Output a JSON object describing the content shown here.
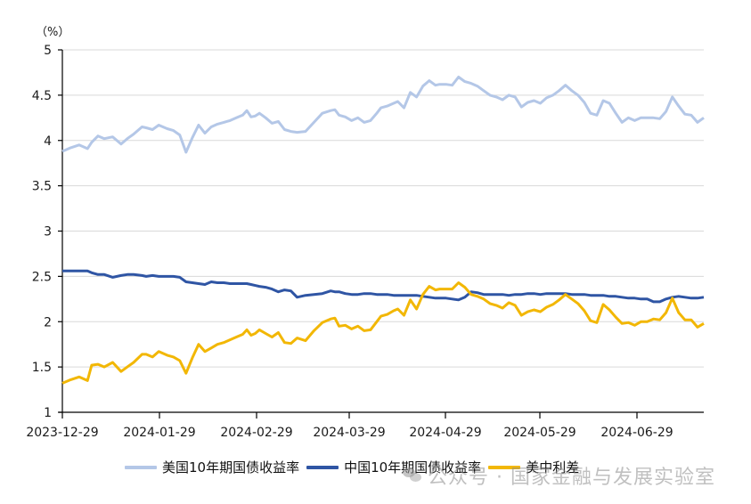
{
  "chart_data": {
    "type": "line",
    "title": "",
    "ylabel": "（%）",
    "xlabel": "",
    "ylim": [
      1,
      5
    ],
    "yticks": [
      "1",
      "1.5",
      "2",
      "2.5",
      "3",
      "3.5",
      "4",
      "4.5",
      "5"
    ],
    "xticks": [
      "2023-12-29",
      "2024-01-29",
      "2024-02-29",
      "2024-03-29",
      "2024-04-29",
      "2024-05-29",
      "2024-06-29"
    ],
    "grid": "horizontal",
    "legend_position": "bottom",
    "x": [
      0,
      4,
      8,
      12,
      14,
      17,
      20,
      24,
      28,
      31,
      34,
      38,
      40,
      43,
      46,
      50,
      53,
      56,
      59,
      62,
      65,
      68,
      71,
      74,
      77,
      80,
      83,
      86,
      88,
      90,
      92,
      94,
      97,
      100,
      103,
      106,
      109,
      112,
      116,
      120,
      124,
      128,
      130,
      132,
      135,
      138,
      141,
      144,
      147,
      150,
      152,
      155,
      158,
      160,
      163,
      166,
      169,
      172,
      175,
      178,
      180,
      183,
      186,
      189,
      192,
      195,
      198,
      201,
      204,
      207,
      210,
      213,
      216,
      219,
      222,
      225,
      228,
      231,
      234,
      237,
      240,
      243,
      246,
      249,
      252,
      255,
      258,
      261,
      264,
      267,
      270,
      273,
      276,
      279,
      282,
      285,
      288,
      291,
      294,
      297,
      300,
      303,
      306
    ],
    "series": [
      {
        "name": "美国10年期国债收益率",
        "color": "#b4c7e7",
        "values": [
          3.88,
          3.92,
          3.95,
          3.91,
          3.98,
          4.05,
          4.02,
          4.04,
          3.96,
          4.02,
          4.07,
          4.15,
          4.14,
          4.12,
          4.17,
          4.13,
          4.11,
          4.06,
          3.87,
          4.03,
          4.17,
          4.08,
          4.15,
          4.18,
          4.2,
          4.22,
          4.25,
          4.28,
          4.33,
          4.26,
          4.27,
          4.3,
          4.25,
          4.19,
          4.21,
          4.12,
          4.1,
          4.09,
          4.1,
          4.2,
          4.3,
          4.33,
          4.34,
          4.28,
          4.26,
          4.22,
          4.25,
          4.2,
          4.22,
          4.3,
          4.36,
          4.38,
          4.41,
          4.43,
          4.36,
          4.53,
          4.48,
          4.6,
          4.66,
          4.61,
          4.62,
          4.62,
          4.61,
          4.7,
          4.65,
          4.63,
          4.6,
          4.55,
          4.5,
          4.48,
          4.45,
          4.5,
          4.48,
          4.37,
          4.42,
          4.44,
          4.41,
          4.47,
          4.5,
          4.55,
          4.61,
          4.55,
          4.5,
          4.42,
          4.3,
          4.28,
          4.44,
          4.41,
          4.3,
          4.2,
          4.25,
          4.22,
          4.25,
          4.25,
          4.25,
          4.24,
          4.32,
          4.48,
          4.38,
          4.29,
          4.28,
          4.2,
          4.25
        ]
      },
      {
        "name": "中国10年期国债收益率",
        "color": "#2f55a4",
        "values": [
          2.56,
          2.56,
          2.56,
          2.56,
          2.54,
          2.52,
          2.52,
          2.49,
          2.51,
          2.52,
          2.52,
          2.51,
          2.5,
          2.51,
          2.5,
          2.5,
          2.5,
          2.49,
          2.44,
          2.43,
          2.42,
          2.41,
          2.44,
          2.43,
          2.43,
          2.42,
          2.42,
          2.42,
          2.42,
          2.41,
          2.4,
          2.39,
          2.38,
          2.36,
          2.33,
          2.35,
          2.34,
          2.27,
          2.29,
          2.3,
          2.31,
          2.34,
          2.33,
          2.33,
          2.31,
          2.3,
          2.3,
          2.31,
          2.31,
          2.3,
          2.3,
          2.3,
          2.29,
          2.29,
          2.29,
          2.29,
          2.29,
          2.28,
          2.27,
          2.26,
          2.26,
          2.26,
          2.25,
          2.24,
          2.27,
          2.33,
          2.32,
          2.3,
          2.3,
          2.3,
          2.3,
          2.29,
          2.3,
          2.3,
          2.31,
          2.31,
          2.3,
          2.31,
          2.31,
          2.31,
          2.31,
          2.3,
          2.3,
          2.3,
          2.29,
          2.29,
          2.29,
          2.28,
          2.28,
          2.27,
          2.26,
          2.26,
          2.25,
          2.25,
          2.22,
          2.22,
          2.25,
          2.27,
          2.28,
          2.27,
          2.26,
          2.26,
          2.27
        ]
      },
      {
        "name": "美中利差",
        "color": "#f2b705",
        "values": [
          1.32,
          1.36,
          1.39,
          1.35,
          1.52,
          1.53,
          1.5,
          1.55,
          1.45,
          1.5,
          1.55,
          1.64,
          1.64,
          1.61,
          1.67,
          1.63,
          1.61,
          1.57,
          1.43,
          1.6,
          1.75,
          1.67,
          1.71,
          1.75,
          1.77,
          1.8,
          1.83,
          1.86,
          1.91,
          1.85,
          1.87,
          1.91,
          1.87,
          1.83,
          1.88,
          1.77,
          1.76,
          1.82,
          1.79,
          1.9,
          1.99,
          2.03,
          2.04,
          1.95,
          1.96,
          1.92,
          1.95,
          1.9,
          1.91,
          2.0,
          2.06,
          2.08,
          2.12,
          2.14,
          2.07,
          2.24,
          2.14,
          2.3,
          2.39,
          2.35,
          2.36,
          2.36,
          2.36,
          2.43,
          2.38,
          2.3,
          2.28,
          2.25,
          2.2,
          2.18,
          2.15,
          2.21,
          2.18,
          2.07,
          2.11,
          2.13,
          2.11,
          2.16,
          2.19,
          2.24,
          2.3,
          2.25,
          2.2,
          2.12,
          2.01,
          1.99,
          2.19,
          2.13,
          2.05,
          1.98,
          1.99,
          1.96,
          2.0,
          2.0,
          2.03,
          2.02,
          2.1,
          2.26,
          2.1,
          2.02,
          2.02,
          1.94,
          1.98
        ]
      }
    ]
  },
  "legend": {
    "items": [
      {
        "label": "美国10年期国债收益率",
        "color": "#b4c7e7"
      },
      {
        "label": "中国10年期国债收益率",
        "color": "#2f55a4"
      },
      {
        "label": "美中利差",
        "color": "#f2b705"
      }
    ]
  },
  "watermark": {
    "text": "公众号 · 国家金融与发展实验室"
  }
}
